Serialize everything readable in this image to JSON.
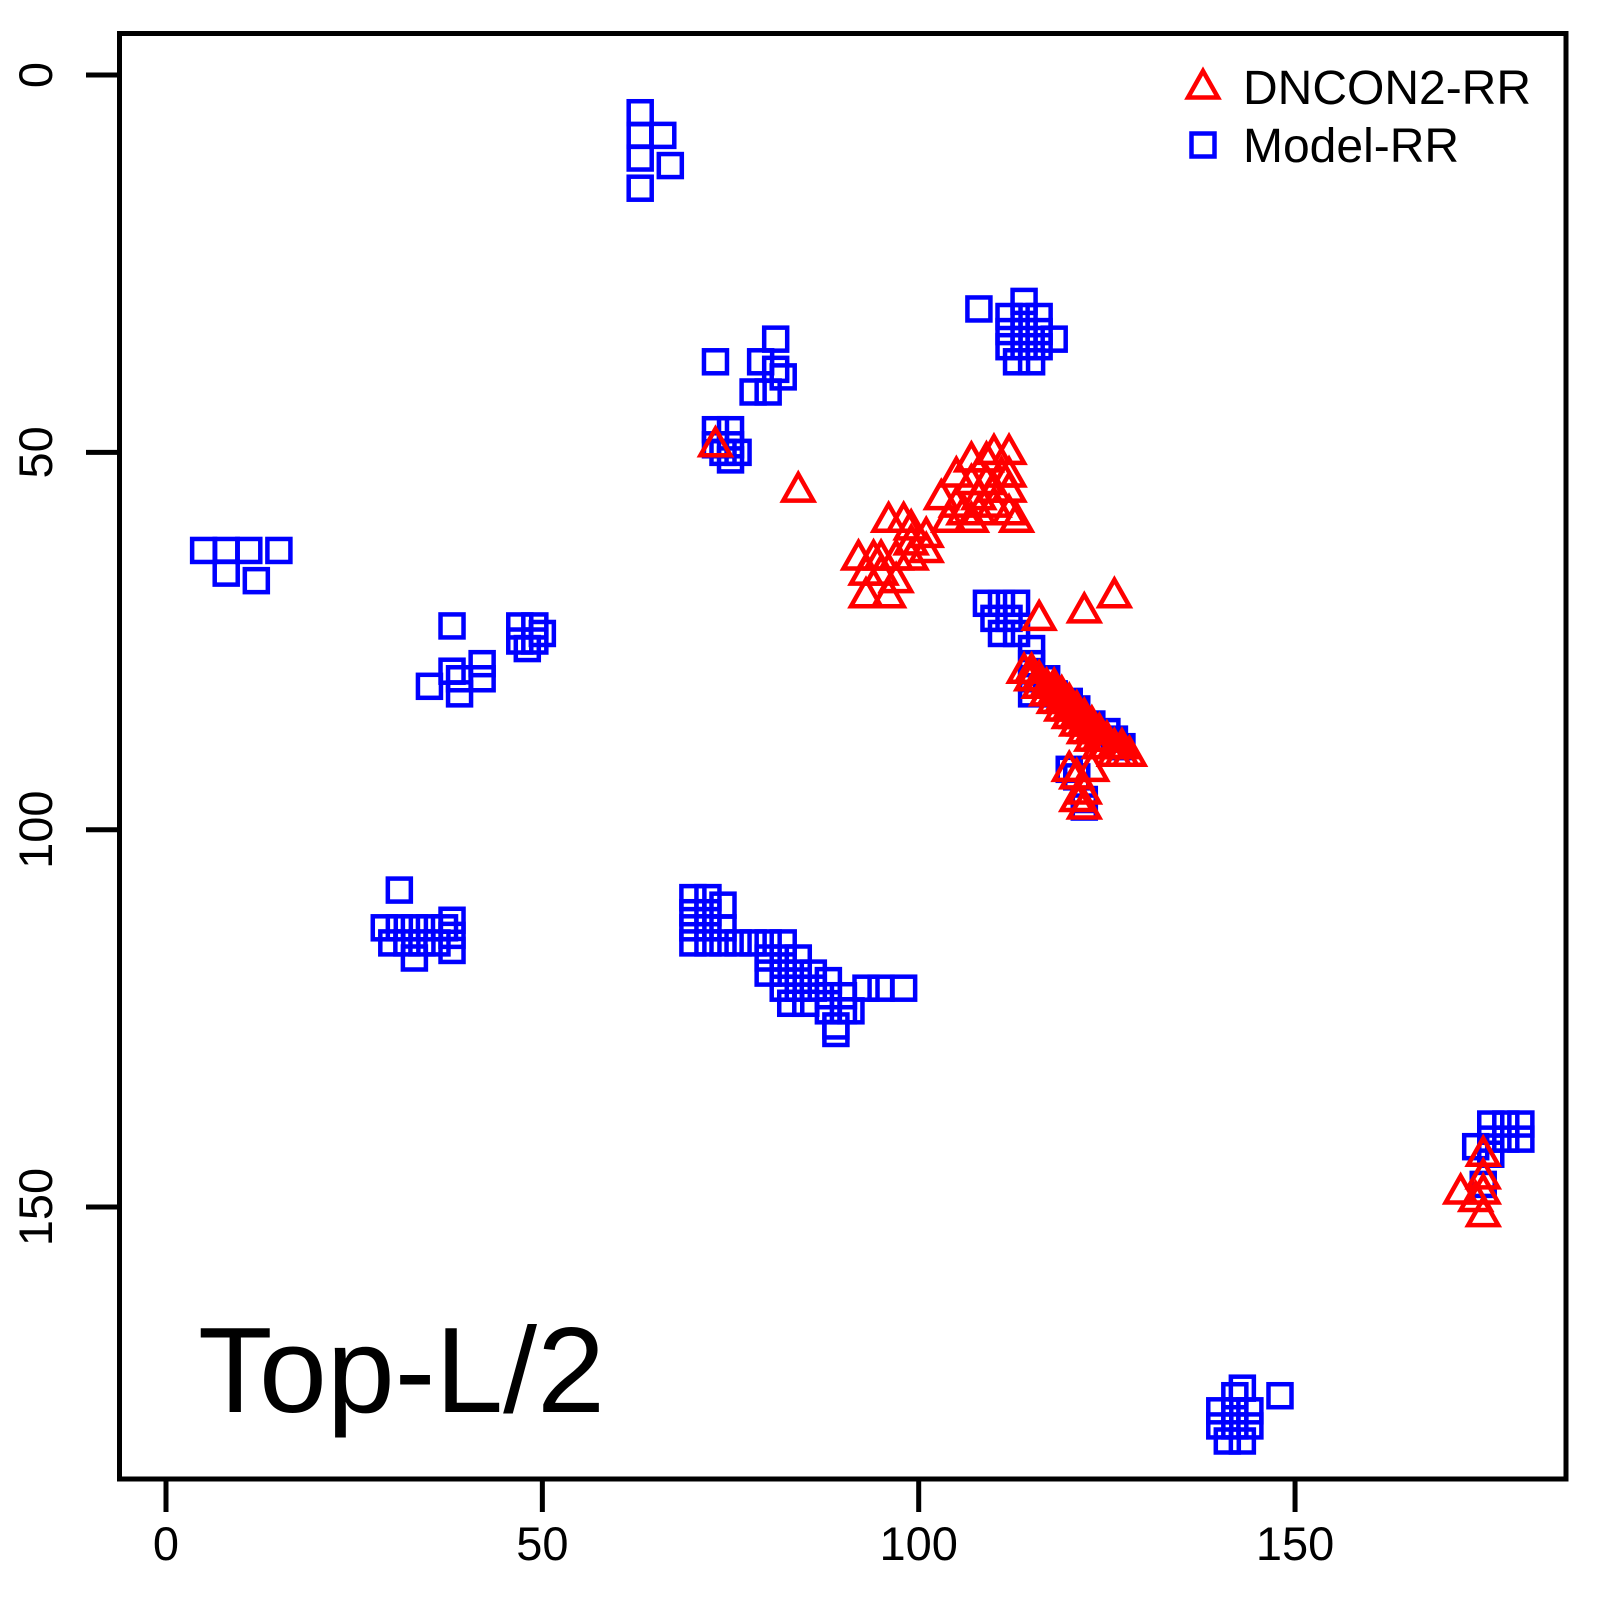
{
  "chart_data": {
    "type": "scatter",
    "title": "Top-L/2",
    "xlabel": "",
    "ylabel": "",
    "x_ticks": [
      0,
      50,
      100,
      150
    ],
    "y_ticks": [
      0,
      50,
      100,
      150
    ],
    "xlim": [
      -6,
      186
    ],
    "ylim": [
      186,
      -6
    ],
    "y_axis_inverted": true,
    "grid": false,
    "legend_position": "top-right",
    "colors": {
      "dncon2": "#FF0000",
      "model": "#0000FF",
      "axis": "#000000",
      "background": "#FFFFFF"
    },
    "legend": [
      {
        "label": "DNCON2-RR",
        "marker": "triangle",
        "color": "#FF0000"
      },
      {
        "label": "Model-RR",
        "marker": "square",
        "color": "#0000FF"
      }
    ],
    "series": [
      {
        "name": "DNCON2-RR",
        "marker": "triangle",
        "color": "#FF0000",
        "points": [
          [
            73,
            49
          ],
          [
            84,
            55
          ],
          [
            92,
            64
          ],
          [
            94,
            64
          ],
          [
            95,
            64
          ],
          [
            97,
            64
          ],
          [
            99,
            64
          ],
          [
            93,
            66
          ],
          [
            95,
            66
          ],
          [
            97,
            67
          ],
          [
            93,
            69
          ],
          [
            96,
            69
          ],
          [
            96,
            59
          ],
          [
            98,
            59
          ],
          [
            99,
            60
          ],
          [
            99,
            62
          ],
          [
            101,
            61
          ],
          [
            101,
            63
          ],
          [
            103,
            56
          ],
          [
            105,
            57
          ],
          [
            104,
            59
          ],
          [
            106,
            58
          ],
          [
            107,
            59
          ],
          [
            108,
            58
          ],
          [
            105,
            53
          ],
          [
            107,
            51
          ],
          [
            109,
            51
          ],
          [
            110,
            50
          ],
          [
            112,
            50
          ],
          [
            107,
            54
          ],
          [
            109,
            54
          ],
          [
            111,
            53
          ],
          [
            112,
            53
          ],
          [
            110,
            55
          ],
          [
            112,
            55
          ],
          [
            108,
            56
          ],
          [
            110,
            57
          ],
          [
            112,
            58
          ],
          [
            113,
            59
          ],
          [
            122,
            71
          ],
          [
            126,
            69
          ],
          [
            116,
            72
          ],
          [
            114,
            79
          ],
          [
            115,
            79
          ],
          [
            115,
            80
          ],
          [
            116,
            80
          ],
          [
            116,
            81
          ],
          [
            117,
            81
          ],
          [
            117,
            82
          ],
          [
            118,
            81
          ],
          [
            118,
            82
          ],
          [
            118,
            83
          ],
          [
            119,
            82
          ],
          [
            119,
            83
          ],
          [
            119,
            84
          ],
          [
            120,
            83
          ],
          [
            120,
            84
          ],
          [
            120,
            85
          ],
          [
            121,
            84
          ],
          [
            121,
            85
          ],
          [
            121,
            86
          ],
          [
            122,
            85
          ],
          [
            122,
            86
          ],
          [
            122,
            87
          ],
          [
            123,
            86
          ],
          [
            123,
            87
          ],
          [
            123,
            88
          ],
          [
            124,
            87
          ],
          [
            124,
            88
          ],
          [
            124,
            89
          ],
          [
            125,
            88
          ],
          [
            125,
            89
          ],
          [
            126,
            89
          ],
          [
            126,
            90
          ],
          [
            127,
            89
          ],
          [
            127,
            90
          ],
          [
            128,
            90
          ],
          [
            120,
            92
          ],
          [
            123,
            92
          ],
          [
            121,
            93
          ],
          [
            122,
            95
          ],
          [
            121,
            96
          ],
          [
            122,
            97
          ],
          [
            175,
            143
          ],
          [
            175,
            146
          ],
          [
            172,
            148
          ],
          [
            175,
            148
          ],
          [
            174,
            149
          ],
          [
            175,
            151
          ]
        ]
      },
      {
        "name": "Model-RR",
        "marker": "square",
        "color": "#0000FF",
        "points": [
          [
            63,
            5
          ],
          [
            63,
            8
          ],
          [
            66,
            8
          ],
          [
            63,
            11
          ],
          [
            67,
            12
          ],
          [
            63,
            15
          ],
          [
            108,
            31
          ],
          [
            114,
            30
          ],
          [
            112,
            32
          ],
          [
            114,
            32
          ],
          [
            116,
            32
          ],
          [
            112,
            34
          ],
          [
            114,
            34
          ],
          [
            116,
            34
          ],
          [
            118,
            35
          ],
          [
            112,
            36
          ],
          [
            114,
            36
          ],
          [
            116,
            36
          ],
          [
            113,
            38
          ],
          [
            115,
            38
          ],
          [
            81,
            35
          ],
          [
            73,
            38
          ],
          [
            79,
            38
          ],
          [
            81,
            39
          ],
          [
            82,
            40
          ],
          [
            78,
            42
          ],
          [
            80,
            42
          ],
          [
            73,
            47
          ],
          [
            75,
            47
          ],
          [
            73,
            49
          ],
          [
            75,
            49
          ],
          [
            74,
            50
          ],
          [
            76,
            50
          ],
          [
            75,
            51
          ],
          [
            5,
            63
          ],
          [
            8,
            63
          ],
          [
            11,
            63
          ],
          [
            15,
            63
          ],
          [
            8,
            66
          ],
          [
            12,
            67
          ],
          [
            38,
            73
          ],
          [
            47,
            73
          ],
          [
            49,
            73
          ],
          [
            50,
            74
          ],
          [
            47,
            75
          ],
          [
            49,
            75
          ],
          [
            48,
            76
          ],
          [
            42,
            78
          ],
          [
            38,
            79
          ],
          [
            39,
            80
          ],
          [
            42,
            80
          ],
          [
            35,
            81
          ],
          [
            39,
            82
          ],
          [
            109,
            70
          ],
          [
            111,
            70
          ],
          [
            113,
            70
          ],
          [
            110,
            72
          ],
          [
            112,
            72
          ],
          [
            111,
            74
          ],
          [
            113,
            74
          ],
          [
            115,
            76
          ],
          [
            115,
            78
          ],
          [
            115,
            80
          ],
          [
            115,
            82
          ],
          [
            117,
            80
          ],
          [
            118,
            82
          ],
          [
            120,
            83
          ],
          [
            121,
            84
          ],
          [
            123,
            86
          ],
          [
            125,
            87
          ],
          [
            126,
            88
          ],
          [
            127,
            89
          ],
          [
            120,
            92
          ],
          [
            121,
            93
          ],
          [
            122,
            96
          ],
          [
            122,
            97
          ],
          [
            31,
            108
          ],
          [
            38,
            112
          ],
          [
            29,
            113
          ],
          [
            31,
            113
          ],
          [
            33,
            113
          ],
          [
            35,
            113
          ],
          [
            37,
            113
          ],
          [
            38,
            114
          ],
          [
            30,
            115
          ],
          [
            32,
            115
          ],
          [
            34,
            115
          ],
          [
            36,
            115
          ],
          [
            33,
            117
          ],
          [
            38,
            116
          ],
          [
            70,
            109
          ],
          [
            72,
            109
          ],
          [
            70,
            111
          ],
          [
            72,
            111
          ],
          [
            74,
            110
          ],
          [
            70,
            113
          ],
          [
            72,
            113
          ],
          [
            74,
            113
          ],
          [
            70,
            115
          ],
          [
            72,
            115
          ],
          [
            74,
            115
          ],
          [
            76,
            115
          ],
          [
            78,
            115
          ],
          [
            80,
            115
          ],
          [
            82,
            115
          ],
          [
            80,
            117
          ],
          [
            82,
            117
          ],
          [
            84,
            117
          ],
          [
            80,
            119
          ],
          [
            82,
            119
          ],
          [
            84,
            119
          ],
          [
            82,
            121
          ],
          [
            84,
            121
          ],
          [
            83,
            123
          ],
          [
            85,
            123
          ],
          [
            86,
            119
          ],
          [
            88,
            120
          ],
          [
            86,
            121
          ],
          [
            88,
            122
          ],
          [
            90,
            122
          ],
          [
            88,
            124
          ],
          [
            90,
            124
          ],
          [
            91,
            124
          ],
          [
            89,
            126
          ],
          [
            93,
            121
          ],
          [
            95,
            121
          ],
          [
            98,
            121
          ],
          [
            89,
            127
          ],
          [
            176,
            139
          ],
          [
            178,
            139
          ],
          [
            180,
            139
          ],
          [
            176,
            141
          ],
          [
            178,
            141
          ],
          [
            180,
            141
          ],
          [
            174,
            142
          ],
          [
            176,
            143
          ],
          [
            175,
            147
          ],
          [
            143,
            174
          ],
          [
            142,
            175
          ],
          [
            148,
            175
          ],
          [
            140,
            177
          ],
          [
            142,
            177
          ],
          [
            144,
            177
          ],
          [
            140,
            179
          ],
          [
            142,
            179
          ],
          [
            144,
            179
          ],
          [
            141,
            181
          ],
          [
            143,
            181
          ]
        ]
      }
    ]
  }
}
